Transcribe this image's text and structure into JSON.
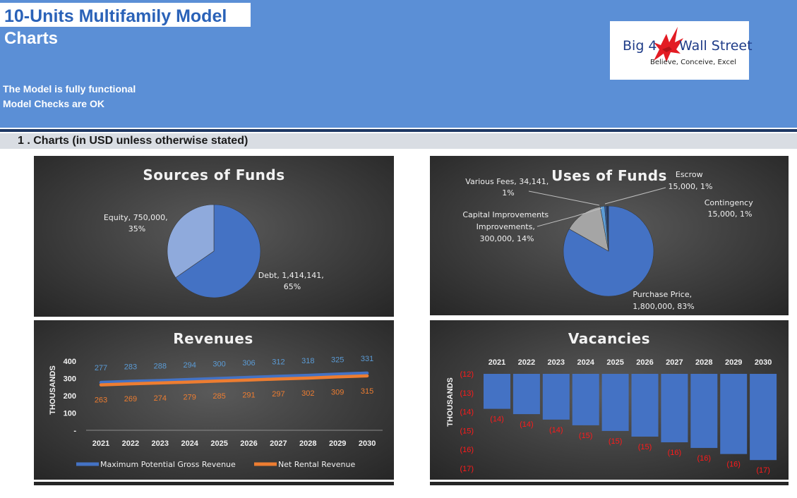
{
  "header": {
    "title": "10-Units Multifamily Model",
    "subtitle": "Charts",
    "status_line1": "The Model is fully functional",
    "status_line2": "Model Checks are OK",
    "logo": {
      "brand_left": "Big 4",
      "brand_right": "Wall Street",
      "tagline": "Believe, Conceive, Excel",
      "colors": {
        "text": "#1f3c88",
        "eagle": "#e31b23"
      }
    }
  },
  "section": {
    "title": "1 . Charts (in USD unless otherwise stated)"
  },
  "chart_data": [
    {
      "type": "pie",
      "title": "Sources of Funds",
      "slices": [
        {
          "label": "Debt",
          "value": 1414141,
          "value_text": "1,414,141",
          "percent": "65%",
          "color": "#4472c4"
        },
        {
          "label": "Equity",
          "value": 750000,
          "value_text": "750,000",
          "percent": "35%",
          "color": "#8faadc"
        }
      ]
    },
    {
      "type": "pie",
      "title": "Uses of Funds",
      "slices": [
        {
          "label": "Purchase Price",
          "value": 1800000,
          "value_text": "1,800,000",
          "percent": "83%",
          "color": "#4472c4"
        },
        {
          "label": "Capital Improvements",
          "value": 300000,
          "value_text": "300,000",
          "percent": "14%",
          "color": "#a5a5a5"
        },
        {
          "label": "Various Fees",
          "value": 34141,
          "value_text": "34,141",
          "percent": "1%",
          "color": "#5b9bd5"
        },
        {
          "label": "Escrow",
          "value": 15000,
          "value_text": "15,000",
          "percent": "1%",
          "color": "#2f5597"
        },
        {
          "label": "Contingency",
          "value": 15000,
          "value_text": "15,000",
          "percent": "1%",
          "color": "#1f3864"
        }
      ]
    },
    {
      "type": "line",
      "title": "Revenues",
      "ylabel": "THOUSANDS",
      "ylim": [
        0,
        400
      ],
      "yticks": [
        "-",
        "100",
        "200",
        "300",
        "400"
      ],
      "categories": [
        "2021",
        "2022",
        "2023",
        "2024",
        "2025",
        "2026",
        "2027",
        "2028",
        "2029",
        "2030"
      ],
      "series": [
        {
          "name": "Maximum Potential Gross Revenue",
          "color": "#4472c4",
          "label_color": "#5b9bd5",
          "values": [
            277,
            283,
            288,
            294,
            300,
            306,
            312,
            318,
            325,
            331
          ]
        },
        {
          "name": "Net Rental Revenue",
          "color": "#ed7d31",
          "label_color": "#ed7d31",
          "values": [
            263,
            269,
            274,
            279,
            285,
            291,
            297,
            302,
            309,
            315
          ]
        }
      ],
      "legend": "bottom"
    },
    {
      "type": "bar",
      "title": "Vacancies",
      "ylabel": "THOUSANDS",
      "ylim": [
        -17,
        -12
      ],
      "yticks": [
        "(12)",
        "(13)",
        "(14)",
        "(15)",
        "(16)",
        "(17)"
      ],
      "categories": [
        "2021",
        "2022",
        "2023",
        "2024",
        "2025",
        "2026",
        "2027",
        "2028",
        "2029",
        "2030"
      ],
      "values": [
        -13.85,
        -14.13,
        -14.42,
        -14.72,
        -15.02,
        -15.32,
        -15.62,
        -15.92,
        -16.24,
        -16.56
      ],
      "data_labels": [
        "(14)",
        "(14)",
        "(14)",
        "(15)",
        "(15)",
        "(15)",
        "(16)",
        "(16)",
        "(16)",
        "(17)"
      ],
      "color": "#4472c4",
      "label_color": "#ff1a1a"
    }
  ]
}
